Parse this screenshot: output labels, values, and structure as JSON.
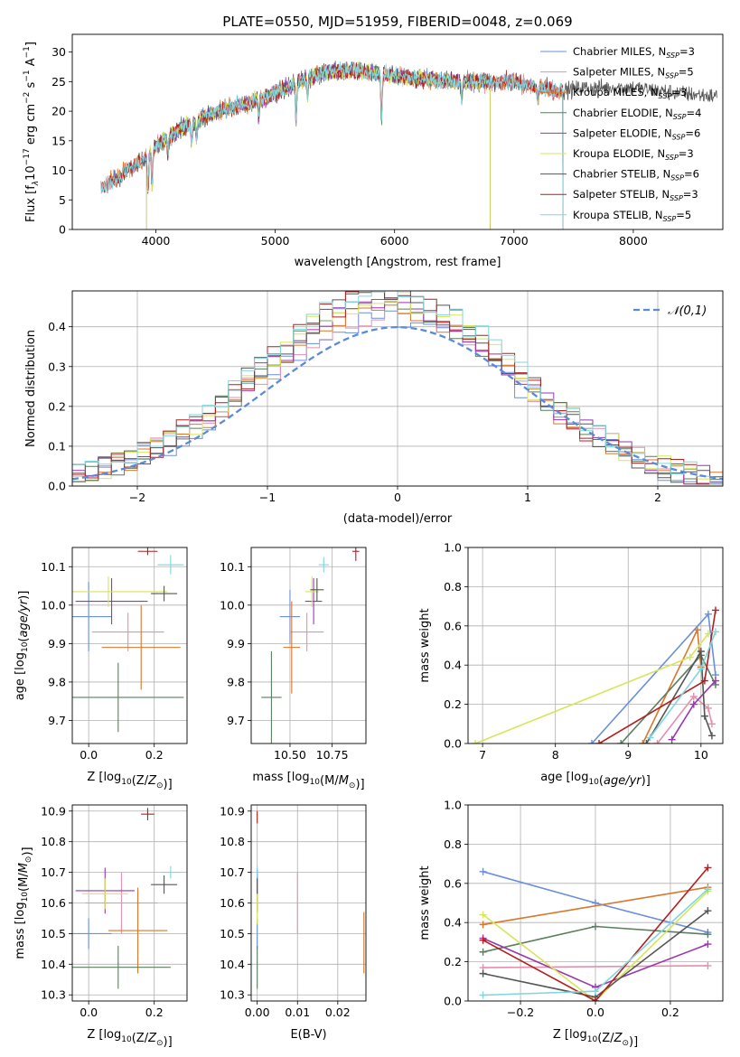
{
  "chart_data": [
    {
      "type": "line",
      "id": "spectrum",
      "title": "PLATE=0550, MJD=51959, FIBERID=0048, z=0.069",
      "xlabel": "wavelength [Angstrom, rest frame]",
      "ylabel": "Flux [f_λ 10^-17 erg cm^-2 s^-1 A^-1]",
      "xlim": [
        3300,
        8750
      ],
      "ylim": [
        0,
        33
      ],
      "xticks": [
        4000,
        5000,
        6000,
        7000,
        8000
      ],
      "yticks": [
        0,
        5,
        10,
        15,
        20,
        25,
        30
      ],
      "legend_position": "top-right",
      "series": [
        {
          "name": "Chabrier MILES, N_SSP=3",
          "color": "#6a8fdc",
          "start": 3540,
          "end": 7410
        },
        {
          "name": "Salpeter MILES, N_SSP=5",
          "color": "#e58fb0",
          "start": 3540,
          "end": 7410
        },
        {
          "name": "Kroupa MILES, N_SSP=3",
          "color": "#d9762a",
          "start": 3540,
          "end": 7410
        },
        {
          "name": "Chabrier ELODIE, N_SSP=4",
          "color": "#5a7f5e",
          "start": 3920,
          "end": 6800
        },
        {
          "name": "Salpeter ELODIE, N_SSP=6",
          "color": "#9a35b0",
          "start": 3920,
          "end": 6800
        },
        {
          "name": "Kroupa ELODIE, N_SSP=3",
          "color": "#d8e55a",
          "start": 3920,
          "end": 6800
        },
        {
          "name": "Chabrier STELIB, N_SSP=6",
          "color": "#555555",
          "start": 3540,
          "end": 8700
        },
        {
          "name": "Salpeter STELIB, N_SSP=3",
          "color": "#b41f1f",
          "start": 3540,
          "end": 7410
        },
        {
          "name": "Kroupa STELIB, N_SSP=5",
          "color": "#7fd6dc",
          "start": 3540,
          "end": 7410
        }
      ],
      "continuum": {
        "x": [
          3540,
          3700,
          3900,
          4000,
          4200,
          4400,
          4600,
          4800,
          5000,
          5200,
          5400,
          5600,
          5800,
          6000,
          6200,
          6500,
          6800,
          7000,
          7200,
          7400,
          7600,
          8000,
          8400,
          8700
        ],
        "y": [
          7,
          9,
          12,
          14,
          17,
          19,
          20.5,
          21.5,
          23,
          25,
          26.5,
          27,
          26.5,
          26,
          25.5,
          25,
          25,
          25,
          24,
          23.5,
          24,
          24,
          23,
          22.5
        ]
      }
    },
    {
      "type": "step",
      "id": "residuals",
      "xlabel": "(data-model)/error",
      "ylabel": "Normed distribution",
      "xlim": [
        -2.5,
        2.5
      ],
      "ylim": [
        0,
        0.49
      ],
      "xticks": [
        -2,
        -1,
        0,
        1,
        2
      ],
      "yticks": [
        0.0,
        0.1,
        0.2,
        0.3,
        0.4
      ],
      "legend": "𝒩(0,1)",
      "legend_position": "top-right",
      "gaussian": {
        "mean": 0,
        "sigma": 1,
        "color": "#5b8ad8"
      }
    },
    {
      "type": "errorbar",
      "id": "age-vs-Z",
      "xlabel": "Z [log10(Z/Z☉)]",
      "ylabel": "age  [log10(age/yr)]",
      "xlim": [
        -0.05,
        0.3
      ],
      "ylim": [
        9.64,
        10.15
      ],
      "xticks": [
        0.0,
        0.2
      ],
      "yticks": [
        9.7,
        9.8,
        9.9,
        10.0,
        10.1
      ],
      "points": [
        {
          "x": 0.0,
          "y": 9.97,
          "xerr": 0.07,
          "yerr": 0.09,
          "color": "#6a8fdc"
        },
        {
          "x": 0.12,
          "y": 9.93,
          "xerr": 0.11,
          "yerr": 0.05,
          "color": "#e58fb0"
        },
        {
          "x": 0.16,
          "y": 9.89,
          "xerr": 0.12,
          "yerr": 0.11,
          "color": "#d9762a"
        },
        {
          "x": 0.09,
          "y": 9.76,
          "xerr": 0.2,
          "yerr": 0.09,
          "color": "#5a7f5e"
        },
        {
          "x": 0.07,
          "y": 10.01,
          "xerr": 0.11,
          "yerr": 0.06,
          "color": "#9a35b0"
        },
        {
          "x": 0.06,
          "y": 10.035,
          "xerr": 0.18,
          "yerr": 0.04,
          "color": "#d8e55a"
        },
        {
          "x": 0.23,
          "y": 10.03,
          "xerr": 0.04,
          "yerr": 0.02,
          "color": "#555555"
        },
        {
          "x": 0.18,
          "y": 10.14,
          "xerr": 0.03,
          "yerr": 0.01,
          "color": "#b41f1f"
        },
        {
          "x": 0.25,
          "y": 10.105,
          "xerr": 0.04,
          "yerr": 0.025,
          "color": "#7fd6dc"
        }
      ]
    },
    {
      "type": "errorbar",
      "id": "age-vs-mass",
      "xlabel": "mass [log10(M/M☉)]",
      "ylabel": "",
      "xlim": [
        10.27,
        10.95
      ],
      "ylim": [
        9.64,
        10.15
      ],
      "xticks": [
        10.5,
        10.75
      ],
      "yticks": [
        9.7,
        9.8,
        9.9,
        10.0,
        10.1
      ],
      "points": [
        {
          "x": 10.5,
          "y": 9.97,
          "xerr": 0.06,
          "yerr": 0.07,
          "color": "#6a8fdc"
        },
        {
          "x": 10.6,
          "y": 9.93,
          "xerr": 0.1,
          "yerr": 0.05,
          "color": "#e58fb0"
        },
        {
          "x": 10.51,
          "y": 9.89,
          "xerr": 0.05,
          "yerr": 0.12,
          "color": "#d9762a"
        },
        {
          "x": 10.39,
          "y": 9.76,
          "xerr": 0.06,
          "yerr": 0.12,
          "color": "#5a7f5e"
        },
        {
          "x": 10.64,
          "y": 10.01,
          "xerr": 0.05,
          "yerr": 0.06,
          "color": "#9a35b0"
        },
        {
          "x": 10.63,
          "y": 10.035,
          "xerr": 0.04,
          "yerr": 0.04,
          "color": "#d8e55a"
        },
        {
          "x": 10.66,
          "y": 10.04,
          "xerr": 0.04,
          "yerr": 0.03,
          "color": "#555555"
        },
        {
          "x": 10.89,
          "y": 10.14,
          "xerr": 0.02,
          "yerr": 0.025,
          "color": "#b41f1f"
        },
        {
          "x": 10.7,
          "y": 10.105,
          "xerr": 0.03,
          "yerr": 0.02,
          "color": "#7fd6dc"
        }
      ]
    },
    {
      "type": "line",
      "id": "weight-vs-age",
      "xlabel": "age  [log10(age/yr)]",
      "ylabel": "mass weight",
      "xlim": [
        6.8,
        10.3
      ],
      "ylim": [
        0,
        1
      ],
      "xticks": [
        7,
        8,
        9,
        10
      ],
      "yticks": [
        0.0,
        0.2,
        0.4,
        0.6,
        0.8,
        1.0
      ],
      "series": [
        {
          "color": "#6a8fdc",
          "x": [
            8.5,
            10.1,
            10.2
          ],
          "y": [
            0.0,
            0.66,
            0.35
          ]
        },
        {
          "color": "#e58fb0",
          "x": [
            9.4,
            9.9,
            10.1,
            10.15
          ],
          "y": [
            0.0,
            0.24,
            0.18,
            0.1
          ]
        },
        {
          "color": "#d9762a",
          "x": [
            9.2,
            9.95,
            10.0
          ],
          "y": [
            0.0,
            0.58,
            0.39
          ]
        },
        {
          "color": "#5a7f5e",
          "x": [
            8.9,
            10.0,
            10.2
          ],
          "y": [
            0.0,
            0.45,
            0.3
          ]
        },
        {
          "color": "#9a35b0",
          "x": [
            9.6,
            9.9,
            10.2
          ],
          "y": [
            0.02,
            0.2,
            0.32
          ]
        },
        {
          "color": "#d8e55a",
          "x": [
            6.9,
            9.85,
            10.1
          ],
          "y": [
            0.0,
            0.44,
            0.56
          ]
        },
        {
          "color": "#555555",
          "x": [
            9.25,
            10.0,
            10.05,
            10.15
          ],
          "y": [
            0.0,
            0.47,
            0.14,
            0.04
          ]
        },
        {
          "color": "#b41f1f",
          "x": [
            8.6,
            10.05,
            10.2
          ],
          "y": [
            0.0,
            0.32,
            0.68
          ]
        },
        {
          "color": "#7fd6dc",
          "x": [
            9.3,
            10.0,
            10.2
          ],
          "y": [
            0.03,
            0.38,
            0.57
          ]
        }
      ]
    },
    {
      "type": "errorbar",
      "id": "mass-vs-Z",
      "xlabel": "Z [log10(Z/Z☉)]",
      "ylabel": "mass [log10(M/M☉)]",
      "xlim": [
        -0.05,
        0.3
      ],
      "ylim": [
        10.28,
        10.92
      ],
      "xticks": [
        0.0,
        0.2
      ],
      "yticks": [
        10.3,
        10.4,
        10.5,
        10.6,
        10.7,
        10.8,
        10.9
      ],
      "points": [
        {
          "x": 0.0,
          "y": 10.5,
          "xerr": 0.07,
          "yerr": 0.05,
          "color": "#6a8fdc"
        },
        {
          "x": 0.1,
          "y": 10.6,
          "xerr": 0.11,
          "yerr": 0.1,
          "color": "#e58fb0"
        },
        {
          "x": 0.15,
          "y": 10.51,
          "xerr": 0.09,
          "yerr": 0.14,
          "color": "#d9762a"
        },
        {
          "x": 0.09,
          "y": 10.39,
          "xerr": 0.16,
          "yerr": 0.07,
          "color": "#5a7f5e"
        },
        {
          "x": 0.05,
          "y": 10.64,
          "xerr": 0.09,
          "yerr": 0.075,
          "color": "#9a35b0"
        },
        {
          "x": 0.05,
          "y": 10.63,
          "xerr": 0.07,
          "yerr": 0.05,
          "color": "#d8e55a"
        },
        {
          "x": 0.23,
          "y": 10.66,
          "xerr": 0.04,
          "yerr": 0.03,
          "color": "#555555"
        },
        {
          "x": 0.18,
          "y": 10.89,
          "xerr": 0.02,
          "yerr": 0.02,
          "color": "#b41f1f"
        },
        {
          "x": 0.25,
          "y": 10.7,
          "xerr": 0.03,
          "yerr": 0.02,
          "color": "#7fd6dc"
        }
      ]
    },
    {
      "type": "errorbar",
      "id": "mass-vs-ebv",
      "xlabel": "E(B-V)",
      "ylabel": "",
      "xlim": [
        -0.0015,
        0.027
      ],
      "ylim": [
        10.28,
        10.92
      ],
      "xticks": [
        0.0,
        0.01,
        0.02
      ],
      "yticks": [
        10.3,
        10.4,
        10.5,
        10.6,
        10.7,
        10.8,
        10.9
      ],
      "points": [
        {
          "x": 0.0,
          "y": 10.5,
          "xerr": 0,
          "yerr": 0.05,
          "color": "#6a8fdc"
        },
        {
          "x": 0.01,
          "y": 10.6,
          "xerr": 0,
          "yerr": 0.1,
          "color": "#e58fb0"
        },
        {
          "x": 0.0265,
          "y": 10.47,
          "xerr": 0,
          "yerr": 0.1,
          "color": "#d9762a"
        },
        {
          "x": 0.0,
          "y": 10.39,
          "xerr": 0,
          "yerr": 0.07,
          "color": "#5a7f5e"
        },
        {
          "x": 0.0,
          "y": 10.64,
          "xerr": 0,
          "yerr": 0.07,
          "color": "#9a35b0"
        },
        {
          "x": 0.0,
          "y": 10.58,
          "xerr": 0,
          "yerr": 0.05,
          "color": "#d8e55a"
        },
        {
          "x": 0.0,
          "y": 10.66,
          "xerr": 0,
          "yerr": 0.03,
          "color": "#555555"
        },
        {
          "x": 0.0,
          "y": 10.88,
          "xerr": 0,
          "yerr": 0.02,
          "color": "#b41f1f"
        },
        {
          "x": 0.0,
          "y": 10.7,
          "xerr": 0,
          "yerr": 0.02,
          "color": "#7fd6dc"
        }
      ]
    },
    {
      "type": "line",
      "id": "weight-vs-Z",
      "xlabel": "Z [log10(Z/Z☉)]",
      "ylabel": "mass weight",
      "xlim": [
        -0.34,
        0.34
      ],
      "ylim": [
        0,
        1
      ],
      "xticks": [
        -0.2,
        0.0,
        0.2
      ],
      "yticks": [
        0.0,
        0.2,
        0.4,
        0.6,
        0.8,
        1.0
      ],
      "series": [
        {
          "color": "#6a8fdc",
          "x": [
            -0.3,
            0.0,
            0.3
          ],
          "y": [
            0.66,
            0.5,
            0.35
          ]
        },
        {
          "color": "#e58fb0",
          "x": [
            -0.3,
            0.3
          ],
          "y": [
            0.17,
            0.18
          ]
        },
        {
          "color": "#d9762a",
          "x": [
            -0.3,
            0.3
          ],
          "y": [
            0.39,
            0.58
          ]
        },
        {
          "color": "#5a7f5e",
          "x": [
            -0.3,
            0.0,
            0.3
          ],
          "y": [
            0.25,
            0.38,
            0.34
          ]
        },
        {
          "color": "#9a35b0",
          "x": [
            -0.3,
            0.0,
            0.3
          ],
          "y": [
            0.32,
            0.07,
            0.29
          ]
        },
        {
          "color": "#d8e55a",
          "x": [
            -0.3,
            0.0,
            0.3
          ],
          "y": [
            0.44,
            0.0,
            0.56
          ]
        },
        {
          "color": "#555555",
          "x": [
            -0.3,
            0.0,
            0.3
          ],
          "y": [
            0.14,
            0.02,
            0.46
          ]
        },
        {
          "color": "#b41f1f",
          "x": [
            -0.3,
            0.0,
            0.3
          ],
          "y": [
            0.31,
            0.0,
            0.68
          ]
        },
        {
          "color": "#7fd6dc",
          "x": [
            -0.3,
            0.0,
            0.3
          ],
          "y": [
            0.03,
            0.05,
            0.57
          ]
        }
      ]
    }
  ]
}
